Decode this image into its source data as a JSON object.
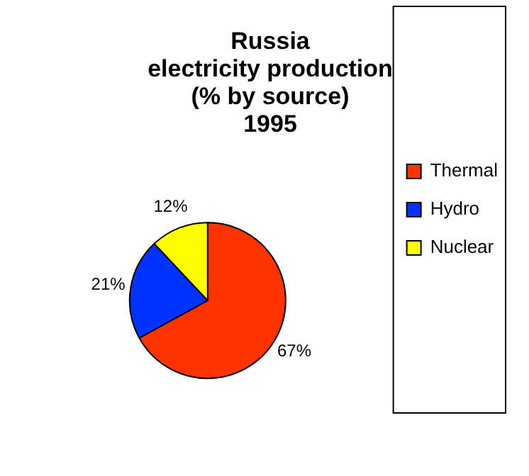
{
  "chart_data": {
    "type": "pie",
    "title": "Russia\nelectricity production\n(% by source)\n1995",
    "categories": [
      "Thermal",
      "Hydro",
      "Nuclear"
    ],
    "values": [
      67,
      21,
      12
    ],
    "colors": [
      "#ff3300",
      "#0033ff",
      "#ffff00"
    ],
    "value_labels": [
      "67%",
      "21%",
      "12%"
    ],
    "legend": "right"
  }
}
